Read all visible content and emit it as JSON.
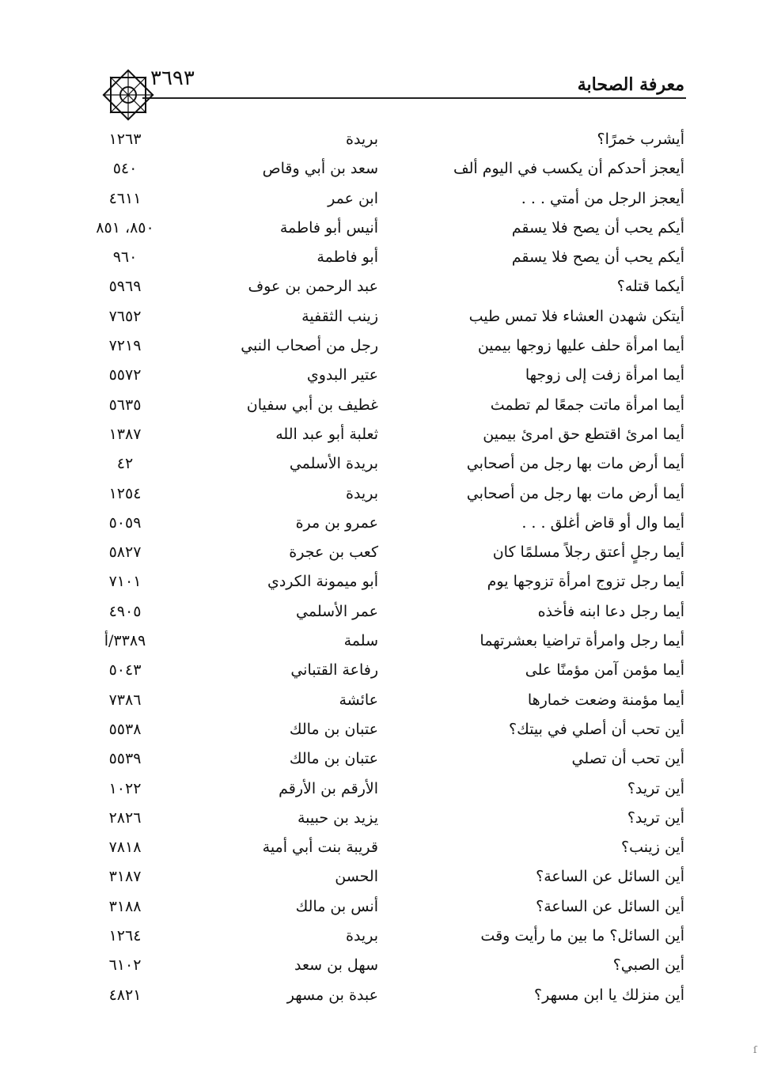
{
  "header": {
    "title": "معرفة الصحابة",
    "page_number": "٣٦٩٣",
    "ornament_icon": "islamic-star-ornament"
  },
  "rows": [
    {
      "text": "أيشرب خمرًا؟",
      "name": "بريدة",
      "ref": "١٢٦٣"
    },
    {
      "text": "أيعجز أحدكم أن يكسب في اليوم ألف",
      "name": "سعد بن أبي وقاص",
      "ref": "٥٤٠"
    },
    {
      "text": "أيعجز الرجل من أمتي . . .",
      "name": "ابن عمر",
      "ref": "٤٦١١"
    },
    {
      "text": "أيكم يحب أن يصح فلا يسقم",
      "name": "أنيس أبو فاطمة",
      "ref": "٨٥٠، ٨٥١"
    },
    {
      "text": "أيكم يحب أن يصح فلا يسقم",
      "name": "أبو فاطمة",
      "ref": "٩٦٠"
    },
    {
      "text": "أيكما قتله؟",
      "name": "عبد الرحمن بن عوف",
      "ref": "٥٩٦٩"
    },
    {
      "text": "أيتكن شهدن العشاء فلا تمس طيب",
      "name": "زينب الثقفية",
      "ref": "٧٦٥٢"
    },
    {
      "text": "أيما امرأة حلف عليها زوجها بيمين",
      "name": "رجل من أصحاب النبي",
      "ref": "٧٢١٩"
    },
    {
      "text": "أيما امرأة زفت إلى زوجها",
      "name": "عتير البدوي",
      "ref": "٥٥٧٢"
    },
    {
      "text": "أيما امرأة ماتت جمعًا لم تطمث",
      "name": "غطيف بن أبي سفيان",
      "ref": "٥٦٣٥"
    },
    {
      "text": "أيما امرئ اقتطع حق امرئ بيمين",
      "name": "ثعلبة أبو عبد الله",
      "ref": "١٣٨٧"
    },
    {
      "text": "أيما أرض مات بها رجل من أصحابي",
      "name": "بريدة الأسلمي",
      "ref": "٤٢"
    },
    {
      "text": "أيما أرض مات بها رجل من أصحابي",
      "name": "بريدة",
      "ref": "١٢٥٤"
    },
    {
      "text": "أيما وال أو قاض أغلق . . .",
      "name": "عمرو بن مرة",
      "ref": "٥٠٥٩"
    },
    {
      "text": "أيما رجلٍ أعتق رجلاً مسلمًا كان",
      "name": "كعب بن عجرة",
      "ref": "٥٨٢٧"
    },
    {
      "text": "أيما رجل تزوج امرأة تزوجها يوم",
      "name": "أبو ميمونة الكردي",
      "ref": "٧١٠١"
    },
    {
      "text": "أيما رجل دعا ابنه فأخذه",
      "name": "عمر الأسلمي",
      "ref": "٤٩٠٥"
    },
    {
      "text": "أيما رجل وامرأة تراضيا بعشرتهما",
      "name": "سلمة",
      "ref": "٣٣٨٩/أ"
    },
    {
      "text": "أيما مؤمن آمن مؤمنًا على",
      "name": "رفاعة القتباني",
      "ref": "٥٠٤٣"
    },
    {
      "text": "أيما مؤمنة وضعت خمارها",
      "name": "عائشة",
      "ref": "٧٣٨٦"
    },
    {
      "text": "أين تحب أن أصلي في بيتك؟",
      "name": "عتبان بن مالك",
      "ref": "٥٥٣٨"
    },
    {
      "text": "أين تحب أن تصلي",
      "name": "عتبان بن مالك",
      "ref": "٥٥٣٩"
    },
    {
      "text": "أين تريد؟",
      "name": "الأرقم بن الأرقم",
      "ref": "١٠٢٢"
    },
    {
      "text": "أين تريد؟",
      "name": "يزيد بن حبيبة",
      "ref": "٢٨٢٦"
    },
    {
      "text": "أين زينب؟",
      "name": "قريبة بنت أبي أمية",
      "ref": "٧٨١٨"
    },
    {
      "text": "أين السائل عن الساعة؟",
      "name": "الحسن",
      "ref": "٣١٨٧"
    },
    {
      "text": "أين السائل عن الساعة؟",
      "name": "أنس بن مالك",
      "ref": "٣١٨٨"
    },
    {
      "text": "أين السائل؟ ما بين ما رأيت وقت",
      "name": "بريدة",
      "ref": "١٢٦٤"
    },
    {
      "text": "أين الصبي؟",
      "name": "سهل بن سعد",
      "ref": "٦١٠٢"
    },
    {
      "text": "أين منزلك يا ابن مسهر؟",
      "name": "عبدة بن مسهر",
      "ref": "٤٨٢١"
    }
  ]
}
